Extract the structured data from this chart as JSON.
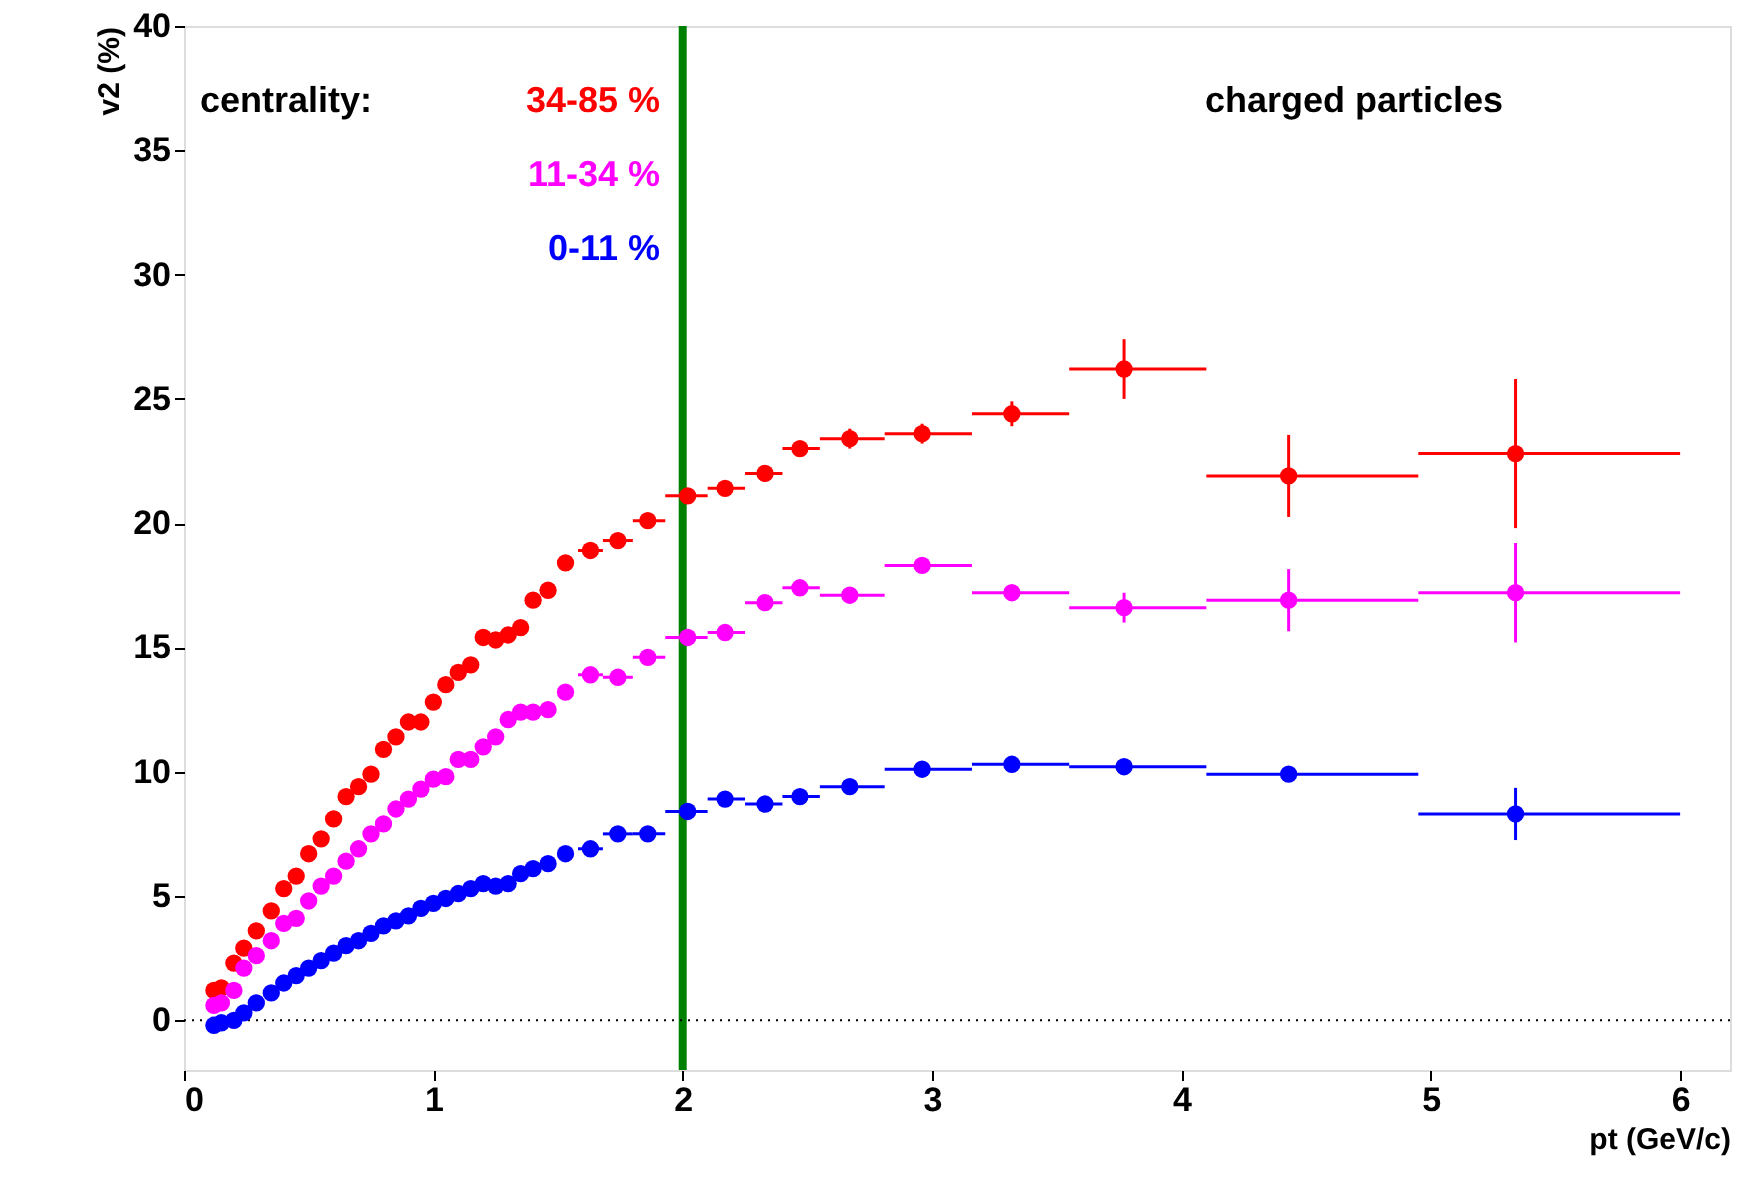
{
  "chart_data": {
    "type": "scatter",
    "xlabel": "pt (GeV/c)",
    "ylabel": "v2 (%)",
    "legend_title": "centrality:",
    "annotations": [
      "charged particles"
    ],
    "xlim": [
      0,
      6.2
    ],
    "ylim": [
      -2,
      40
    ],
    "xticks": [
      0,
      1,
      2,
      3,
      4,
      5,
      6
    ],
    "yticks": [
      0,
      5,
      10,
      15,
      20,
      25,
      30,
      35,
      40
    ],
    "grid": false,
    "marker": "circle",
    "x": [
      0.12,
      0.15,
      0.2,
      0.24,
      0.29,
      0.35,
      0.4,
      0.45,
      0.5,
      0.55,
      0.6,
      0.65,
      0.7,
      0.75,
      0.8,
      0.85,
      0.9,
      0.95,
      1.0,
      1.05,
      1.1,
      1.15,
      1.2,
      1.25,
      1.3,
      1.35,
      1.4,
      1.46,
      1.53,
      1.63,
      1.74,
      1.86,
      2.02,
      2.17,
      2.33,
      2.47,
      2.67,
      2.96,
      3.32,
      3.77,
      4.43,
      5.34
    ],
    "series": [
      {
        "name": "34-85 %",
        "color": "#ff0000",
        "values": [
          1.2,
          1.3,
          2.3,
          2.9,
          3.6,
          4.4,
          5.3,
          5.8,
          6.7,
          7.3,
          8.1,
          9.0,
          9.4,
          9.9,
          10.9,
          11.4,
          12.0,
          12.0,
          12.8,
          13.5,
          14.0,
          14.3,
          15.4,
          15.3,
          15.5,
          15.8,
          16.9,
          17.3,
          18.4,
          18.9,
          19.3,
          20.1,
          21.1,
          21.4,
          22.0,
          23.0,
          23.4,
          23.6,
          24.4,
          26.2,
          21.9,
          22.8
        ],
        "errors": [
          null,
          null,
          null,
          null,
          null,
          null,
          null,
          null,
          null,
          null,
          null,
          null,
          null,
          null,
          null,
          null,
          null,
          null,
          null,
          null,
          null,
          null,
          null,
          null,
          null,
          null,
          null,
          null,
          null,
          null,
          null,
          null,
          null,
          null,
          null,
          null,
          0.4,
          0.4,
          0.5,
          1.2,
          1.65,
          3.0
        ],
        "xerrors": [
          null,
          null,
          null,
          null,
          null,
          null,
          null,
          null,
          null,
          null,
          null,
          null,
          null,
          null,
          null,
          null,
          null,
          null,
          null,
          null,
          null,
          null,
          null,
          null,
          null,
          null,
          null,
          null,
          null,
          [
            1.58,
            1.68
          ],
          [
            1.68,
            1.8
          ],
          [
            1.8,
            1.93
          ],
          [
            1.93,
            2.1
          ],
          [
            2.1,
            2.25
          ],
          [
            2.25,
            2.4
          ],
          [
            2.4,
            2.55
          ],
          [
            2.55,
            2.81
          ],
          [
            2.81,
            3.16
          ],
          [
            3.16,
            3.55
          ],
          [
            3.55,
            4.1
          ],
          [
            4.1,
            4.95
          ],
          [
            4.95,
            6.0
          ]
        ]
      },
      {
        "name": "11-34 %",
        "color": "#ff00ff",
        "values": [
          0.6,
          0.7,
          1.2,
          2.1,
          2.6,
          3.2,
          3.9,
          4.1,
          4.8,
          5.4,
          5.8,
          6.4,
          6.9,
          7.5,
          7.9,
          8.5,
          8.9,
          9.3,
          9.7,
          9.8,
          10.5,
          10.5,
          11.0,
          11.4,
          12.1,
          12.4,
          12.4,
          12.5,
          13.2,
          13.9,
          13.8,
          14.6,
          15.4,
          15.6,
          16.8,
          17.4,
          17.1,
          18.3,
          17.2,
          16.6,
          16.9,
          17.2
        ],
        "errors": [
          null,
          null,
          null,
          null,
          null,
          null,
          null,
          null,
          null,
          null,
          null,
          null,
          null,
          null,
          null,
          null,
          null,
          null,
          null,
          null,
          null,
          null,
          null,
          null,
          null,
          null,
          null,
          null,
          null,
          null,
          null,
          null,
          null,
          null,
          null,
          null,
          null,
          null,
          0.3,
          0.6,
          1.25,
          2.0
        ],
        "xerrors": [
          null,
          null,
          null,
          null,
          null,
          null,
          null,
          null,
          null,
          null,
          null,
          null,
          null,
          null,
          null,
          null,
          null,
          null,
          null,
          null,
          null,
          null,
          null,
          null,
          null,
          null,
          null,
          null,
          null,
          [
            1.58,
            1.68
          ],
          [
            1.68,
            1.8
          ],
          [
            1.8,
            1.93
          ],
          [
            1.93,
            2.1
          ],
          [
            2.1,
            2.25
          ],
          [
            2.25,
            2.4
          ],
          [
            2.4,
            2.55
          ],
          [
            2.55,
            2.81
          ],
          [
            2.81,
            3.16
          ],
          [
            3.16,
            3.55
          ],
          [
            3.55,
            4.1
          ],
          [
            4.1,
            4.95
          ],
          [
            4.95,
            6.0
          ]
        ]
      },
      {
        "name": "0-11 %",
        "color": "#0000ff",
        "values": [
          -0.2,
          -0.1,
          0.0,
          0.3,
          0.7,
          1.1,
          1.5,
          1.8,
          2.1,
          2.4,
          2.7,
          3.0,
          3.2,
          3.5,
          3.8,
          4.0,
          4.2,
          4.5,
          4.7,
          4.9,
          5.1,
          5.3,
          5.5,
          5.4,
          5.5,
          5.9,
          6.1,
          6.3,
          6.7,
          6.9,
          7.5,
          7.5,
          8.4,
          8.9,
          8.7,
          9.0,
          9.4,
          10.1,
          10.3,
          10.2,
          9.9,
          8.3
        ],
        "errors": [
          null,
          null,
          null,
          null,
          null,
          null,
          null,
          null,
          null,
          null,
          null,
          null,
          null,
          null,
          null,
          null,
          null,
          null,
          null,
          null,
          null,
          null,
          null,
          null,
          null,
          null,
          null,
          null,
          null,
          null,
          null,
          null,
          null,
          null,
          null,
          null,
          null,
          null,
          null,
          null,
          0.3,
          1.05
        ],
        "xerrors": [
          null,
          null,
          null,
          null,
          null,
          null,
          null,
          null,
          null,
          null,
          null,
          null,
          null,
          null,
          null,
          null,
          null,
          null,
          null,
          null,
          null,
          null,
          null,
          null,
          null,
          null,
          null,
          null,
          null,
          [
            1.58,
            1.68
          ],
          [
            1.68,
            1.8
          ],
          [
            1.8,
            1.93
          ],
          [
            1.93,
            2.1
          ],
          [
            2.1,
            2.25
          ],
          [
            2.25,
            2.4
          ],
          [
            2.4,
            2.55
          ],
          [
            2.55,
            2.81
          ],
          [
            2.81,
            3.16
          ],
          [
            3.16,
            3.55
          ],
          [
            3.55,
            4.1
          ],
          [
            4.1,
            4.95
          ],
          [
            4.95,
            6.0
          ]
        ]
      }
    ],
    "ref_lines": [
      {
        "axis": "x",
        "value": 2,
        "color": "#008000",
        "line_style": "solid"
      },
      {
        "axis": "y",
        "value": 0,
        "color": "#000000",
        "line_style": "dotted"
      }
    ]
  }
}
